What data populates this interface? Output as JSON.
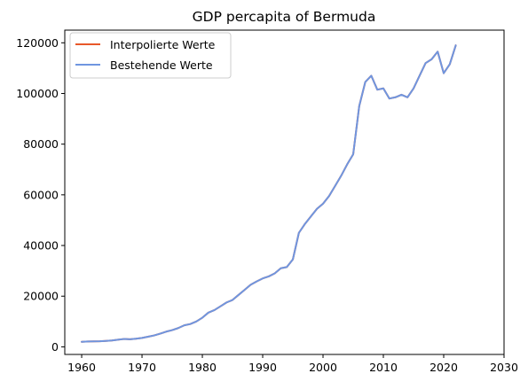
{
  "chart_data": {
    "type": "line",
    "title": "GDP percapita of Bermuda",
    "xlabel": "",
    "ylabel": "",
    "xlim": [
      1957.2,
      2030
    ],
    "ylim": [
      -3000,
      125000
    ],
    "x_ticks": [
      1960,
      1970,
      1980,
      1990,
      2000,
      2010,
      2020,
      2030
    ],
    "y_ticks": [
      0,
      20000,
      40000,
      60000,
      80000,
      100000,
      120000
    ],
    "grid": false,
    "legend_position": "upper-left",
    "series": [
      {
        "name": "Interpolierte Werte",
        "color": "#e8582a",
        "x": [
          1960,
          1961,
          1962,
          1963,
          1964,
          1965,
          1966,
          1967,
          1968,
          1969,
          1970,
          1971,
          1972,
          1973,
          1974,
          1975,
          1976,
          1977,
          1978,
          1979,
          1980,
          1981,
          1982,
          1983,
          1984,
          1985,
          1986,
          1987,
          1988,
          1989,
          1990,
          1991,
          1992,
          1993,
          1994,
          1995,
          1996,
          1997,
          1998,
          1999,
          2000,
          2001,
          2002,
          2003,
          2004,
          2005,
          2006,
          2007,
          2008,
          2009,
          2010,
          2011,
          2012,
          2013,
          2014,
          2015,
          2016,
          2017,
          2018,
          2019,
          2020,
          2021,
          2022
        ],
        "values": [
          2000,
          2100,
          2150,
          2200,
          2350,
          2500,
          2800,
          3100,
          3000,
          3200,
          3500,
          4000,
          4500,
          5200,
          6000,
          6600,
          7400,
          8500,
          9000,
          10000,
          11500,
          13500,
          14500,
          16000,
          17500,
          18500,
          20500,
          22500,
          24500,
          25800,
          27000,
          27800,
          29000,
          31000,
          31500,
          34500,
          45000,
          48500,
          51500,
          54500,
          56500,
          59500,
          63500,
          67500,
          72000,
          76000,
          95000,
          104500,
          107000,
          101500,
          102000,
          98000,
          98500,
          99500,
          98500,
          102000,
          107000,
          112000,
          113500,
          116500,
          108000,
          111500,
          119000
        ]
      },
      {
        "name": "Bestehende Werte",
        "color": "#6f96e0",
        "x": [
          1960,
          1961,
          1962,
          1963,
          1964,
          1965,
          1966,
          1967,
          1968,
          1969,
          1970,
          1971,
          1972,
          1973,
          1974,
          1975,
          1976,
          1977,
          1978,
          1979,
          1980,
          1981,
          1982,
          1983,
          1984,
          1985,
          1986,
          1987,
          1988,
          1989,
          1990,
          1991,
          1992,
          1993,
          1994,
          1995,
          1996,
          1997,
          1998,
          1999,
          2000,
          2001,
          2002,
          2003,
          2004,
          2005,
          2006,
          2007,
          2008,
          2009,
          2010,
          2011,
          2012,
          2013,
          2014,
          2015,
          2016,
          2017,
          2018,
          2019,
          2020,
          2021,
          2022
        ],
        "values": [
          2000,
          2100,
          2150,
          2200,
          2350,
          2500,
          2800,
          3100,
          3000,
          3200,
          3500,
          4000,
          4500,
          5200,
          6000,
          6600,
          7400,
          8500,
          9000,
          10000,
          11500,
          13500,
          14500,
          16000,
          17500,
          18500,
          20500,
          22500,
          24500,
          25800,
          27000,
          27800,
          29000,
          31000,
          31500,
          34500,
          45000,
          48500,
          51500,
          54500,
          56500,
          59500,
          63500,
          67500,
          72000,
          76000,
          95000,
          104500,
          107000,
          101500,
          102000,
          98000,
          98500,
          99500,
          98500,
          102000,
          107000,
          112000,
          113500,
          116500,
          108000,
          111500,
          119000
        ]
      }
    ]
  }
}
